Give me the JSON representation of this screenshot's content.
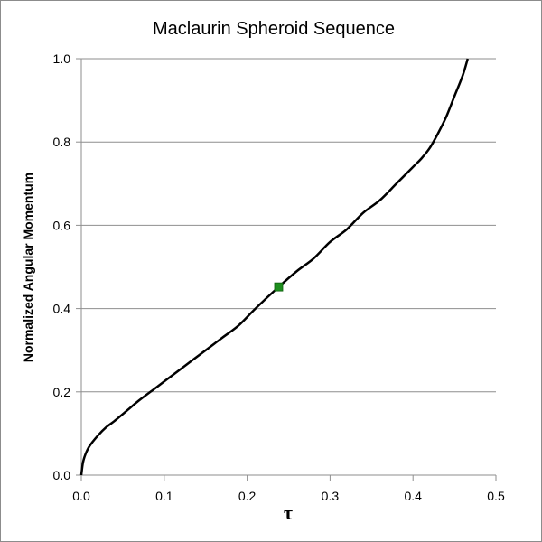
{
  "chart_data": {
    "type": "line",
    "title": "Maclaurin Spheroid Sequence",
    "xlabel": "τ",
    "ylabel": "Normalized Angular Momentum",
    "xlim": [
      0,
      0.5
    ],
    "ylim": [
      0,
      1.0
    ],
    "x_ticks": [
      "0.0",
      "0.1",
      "0.2",
      "0.3",
      "0.4",
      "0.5"
    ],
    "y_ticks": [
      "0.0",
      "0.2",
      "0.4",
      "0.6",
      "0.8",
      "1.0"
    ],
    "grid": "horizontal",
    "series": [
      {
        "color": "#000000",
        "points": [
          [
            0.0,
            0.0
          ],
          [
            0.002,
            0.03
          ],
          [
            0.005,
            0.05
          ],
          [
            0.01,
            0.07
          ],
          [
            0.02,
            0.095
          ],
          [
            0.03,
            0.115
          ],
          [
            0.04,
            0.13
          ],
          [
            0.055,
            0.155
          ],
          [
            0.07,
            0.18
          ],
          [
            0.09,
            0.21
          ],
          [
            0.11,
            0.24
          ],
          [
            0.13,
            0.27
          ],
          [
            0.15,
            0.3
          ],
          [
            0.17,
            0.33
          ],
          [
            0.19,
            0.36
          ],
          [
            0.21,
            0.4
          ],
          [
            0.238,
            0.452
          ],
          [
            0.26,
            0.49
          ],
          [
            0.28,
            0.52
          ],
          [
            0.3,
            0.56
          ],
          [
            0.32,
            0.59
          ],
          [
            0.34,
            0.63
          ],
          [
            0.36,
            0.66
          ],
          [
            0.38,
            0.7
          ],
          [
            0.4,
            0.74
          ],
          [
            0.41,
            0.76
          ],
          [
            0.42,
            0.785
          ],
          [
            0.43,
            0.82
          ],
          [
            0.44,
            0.86
          ],
          [
            0.45,
            0.91
          ],
          [
            0.46,
            0.96
          ],
          [
            0.466,
            1.0
          ]
        ]
      }
    ],
    "marker": {
      "x": 0.238,
      "y": 0.452,
      "color": "#1e8f1e"
    }
  }
}
